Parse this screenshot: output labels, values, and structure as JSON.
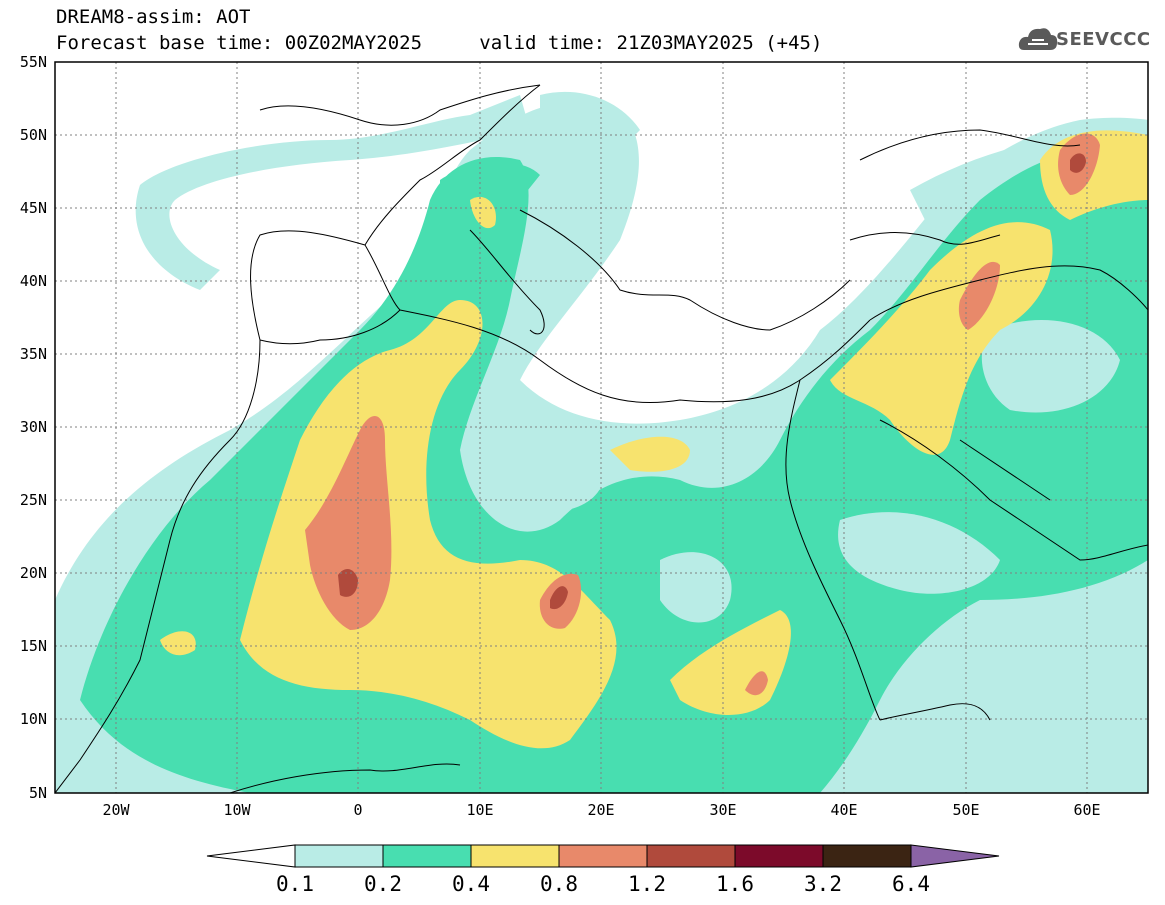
{
  "title": {
    "line1": "DREAM8-assim: AOT",
    "base_time": "Forecast base time: 00Z02MAY2025",
    "valid_time": "valid time: 21Z03MAY2025 (+45)"
  },
  "logo": {
    "text": "SEEVCCC",
    "icon": "cloud-icon"
  },
  "map": {
    "lat_labels": [
      "55N",
      "50N",
      "45N",
      "40N",
      "35N",
      "30N",
      "25N",
      "20N",
      "15N",
      "10N",
      "5N"
    ],
    "lon_labels": [
      "20W",
      "10W",
      "0",
      "10E",
      "20E",
      "30E",
      "40E",
      "50E",
      "60E"
    ]
  },
  "colorbar": {
    "levels": [
      "0.1",
      "0.2",
      "0.4",
      "0.8",
      "1.2",
      "1.6",
      "3.2",
      "6.4"
    ],
    "colors": [
      "#ffffff",
      "#b9ece6",
      "#48deb0",
      "#f7e36e",
      "#e8896a",
      "#b04a3c",
      "#7c0a2a",
      "#3b2413",
      "#8a63a6"
    ]
  }
}
